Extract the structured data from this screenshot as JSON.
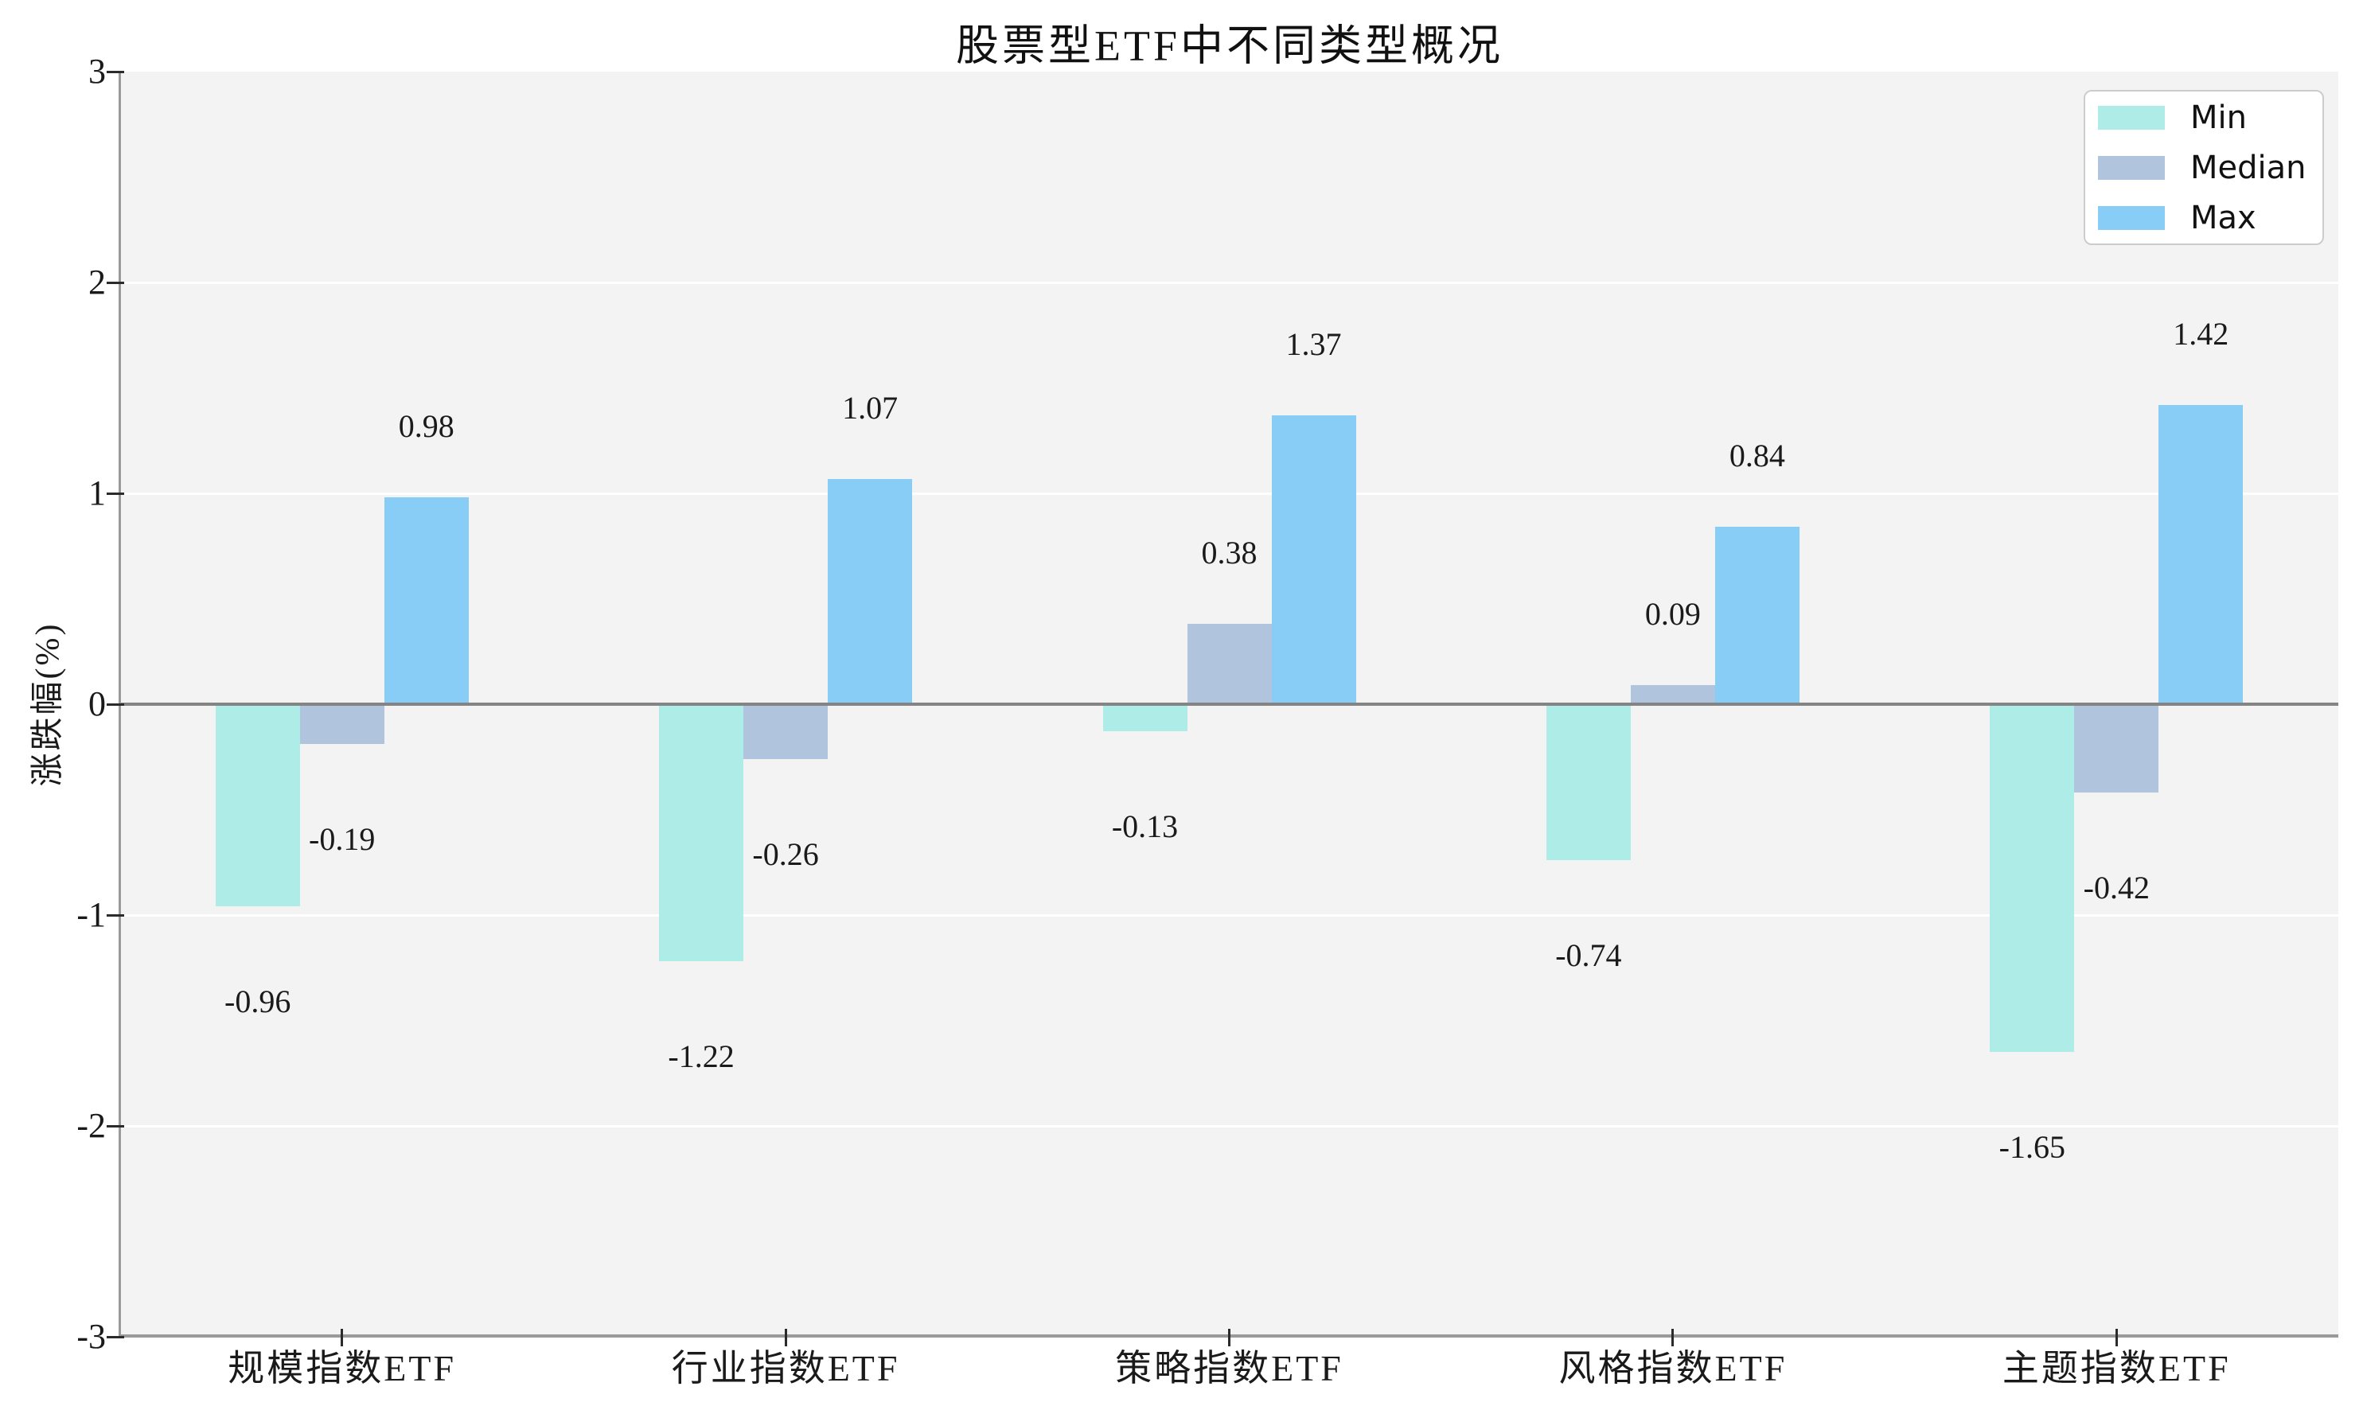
{
  "chart_data": {
    "type": "bar",
    "title": "股票型ETF中不同类型概况",
    "ylabel": "涨跌幅(%)",
    "ylim": [
      -3,
      3
    ],
    "yticks": [
      -3,
      -2,
      -1,
      0,
      1,
      2,
      3
    ],
    "ytick_labels": [
      "-3",
      "-2",
      "-1",
      "0",
      "1",
      "2",
      "3"
    ],
    "grid": true,
    "legend_position": "top-right",
    "plot_background": "#f3f3f4",
    "zero_line_color": "#848484",
    "categories": [
      "规模指数ETF",
      "行业指数ETF",
      "策略指数ETF",
      "风格指数ETF",
      "主题指数ETF"
    ],
    "series": [
      {
        "name": "Min",
        "color": "#aeece8",
        "values": [
          -0.96,
          -1.22,
          -0.13,
          -0.74,
          -1.65
        ],
        "labels": [
          "-0.96",
          "-1.22",
          "-0.13",
          "-0.74",
          "-1.65"
        ]
      },
      {
        "name": "Median",
        "color": "#b0c4de",
        "values": [
          -0.19,
          -0.26,
          0.38,
          0.09,
          -0.42
        ],
        "labels": [
          "-0.19",
          "-0.26",
          "0.38",
          "0.09",
          "-0.42"
        ]
      },
      {
        "name": "Max",
        "color": "#87cdf6",
        "values": [
          0.98,
          1.07,
          1.37,
          0.84,
          1.42
        ],
        "labels": [
          "0.98",
          "1.07",
          "1.37",
          "0.84",
          "1.42"
        ]
      }
    ]
  }
}
